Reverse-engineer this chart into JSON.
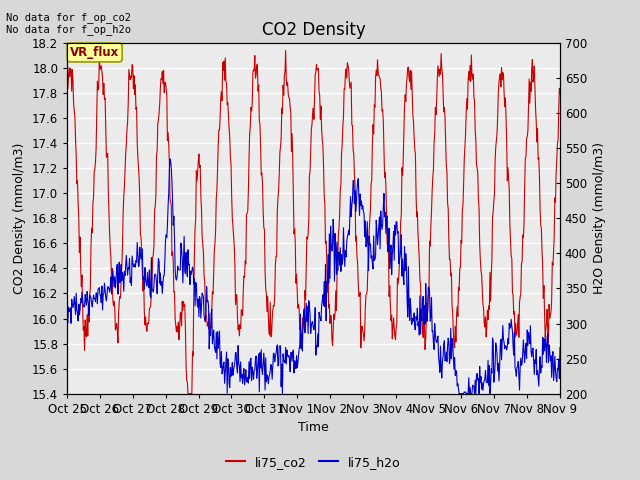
{
  "title": "CO2 Density",
  "xlabel": "Time",
  "ylabel_left": "CO2 Density (mmol/m3)",
  "ylabel_right": "H2O Density (mmol/m3)",
  "ylim_left": [
    15.4,
    18.2
  ],
  "ylim_right": [
    200,
    700
  ],
  "yticks_left": [
    15.4,
    15.6,
    15.8,
    16.0,
    16.2,
    16.4,
    16.6,
    16.8,
    17.0,
    17.2,
    17.4,
    17.6,
    17.8,
    18.0,
    18.2
  ],
  "yticks_right": [
    200,
    250,
    300,
    350,
    400,
    450,
    500,
    550,
    600,
    650,
    700
  ],
  "xtick_labels": [
    "Oct 25",
    "Oct 26",
    "Oct 27",
    "Oct 28",
    "Oct 29",
    "Oct 30",
    "Oct 31",
    "Nov 1",
    "Nov 2",
    "Nov 3",
    "Nov 4",
    "Nov 5",
    "Nov 6",
    "Nov 7",
    "Nov 8",
    "Nov 9"
  ],
  "annotation_top_left": "No data for f_op_co2\nNo data for f_op_h2o",
  "box_label": "VR_flux",
  "box_color": "#ffff99",
  "box_edge_color": "#999900",
  "line1_color": "#cc0000",
  "line2_color": "#0000cc",
  "line1_label": "li75_co2",
  "line2_label": "li75_h2o",
  "bg_color": "#d8d8d8",
  "plot_bg_color": "#ebebeb",
  "grid_color": "#ffffff",
  "title_fontsize": 12,
  "axis_label_fontsize": 9,
  "tick_fontsize": 8.5
}
